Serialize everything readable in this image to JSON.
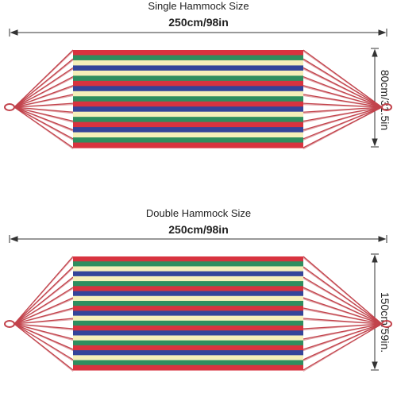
{
  "single": {
    "title": "Single Hammock Size",
    "length": "250cm/98in",
    "width": "80cm/31.5in"
  },
  "double": {
    "title": "Double Hammock Size",
    "length": "250cm/98in",
    "width": "150cm/59in."
  },
  "colors": {
    "red": "#d8333f",
    "green": "#2f8e5f",
    "blue": "#34449a",
    "cream": "#f6efb9",
    "rope": "#c2434c",
    "dimension": "#333333"
  },
  "stripes": {
    "single": [
      "red",
      "green",
      "cream",
      "blue",
      "cream",
      "green",
      "red",
      "blue",
      "cream",
      "green",
      "red",
      "blue",
      "cream",
      "green",
      "red",
      "blue",
      "cream",
      "green",
      "red"
    ],
    "double": [
      "red",
      "green",
      "cream",
      "blue",
      "cream",
      "green",
      "red",
      "blue",
      "cream",
      "green",
      "red",
      "blue",
      "cream",
      "green",
      "red",
      "blue",
      "cream",
      "green",
      "red",
      "blue",
      "cream",
      "green",
      "red"
    ]
  }
}
